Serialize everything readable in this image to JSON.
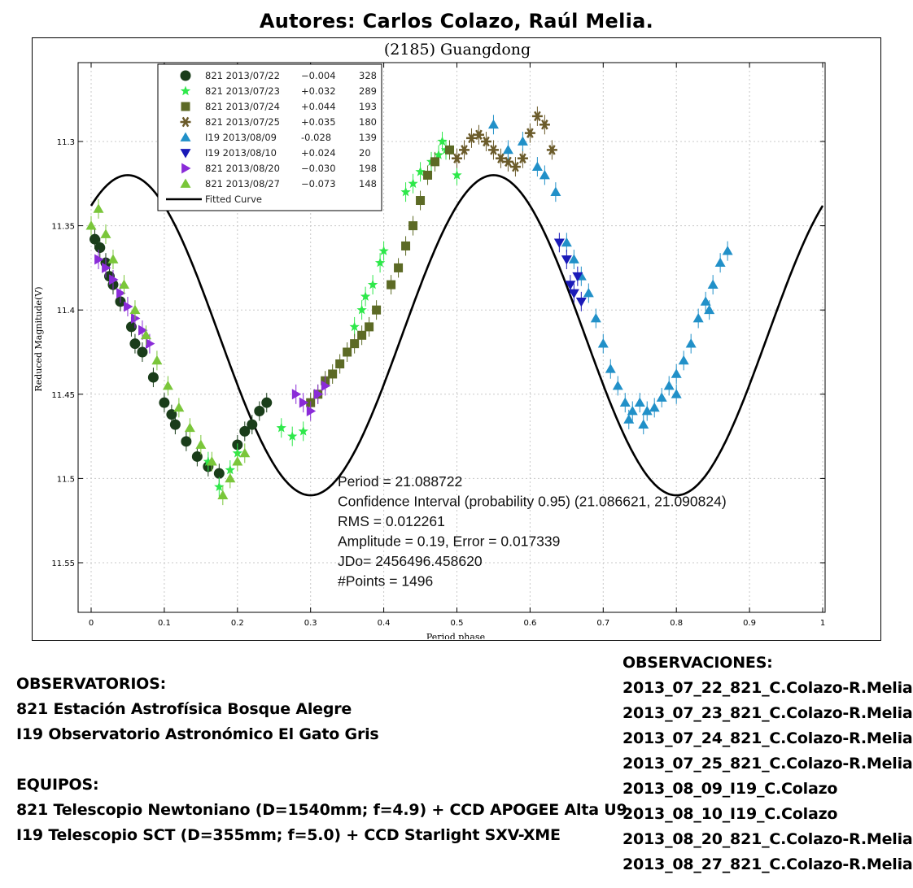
{
  "header": {
    "authors": "Autores: Carlos Colazo, Raúl Melia."
  },
  "chart_data": {
    "type": "scatter",
    "title": "(2185) Guangdong",
    "xlabel": "Period phase",
    "ylabel": "Reduced Magnitude(V)",
    "xlim": [
      0,
      1
    ],
    "ylim": [
      11.55,
      11.275
    ],
    "x_ticks": [
      "0",
      "0.1",
      "0.2",
      "0.3",
      "0.4",
      "0.5",
      "0.6",
      "0.7",
      "0.8",
      "0.9",
      "1"
    ],
    "y_ticks": [
      "11.3",
      "11.35",
      "11.4",
      "11.45",
      "11.5",
      "11.55"
    ],
    "y_tick_values": [
      11.3,
      11.35,
      11.4,
      11.45,
      11.5,
      11.55
    ],
    "grid": true,
    "legend_position": "top-left",
    "series": [
      {
        "name": "821 2013/07/22",
        "offset": "−0.004",
        "count": "328",
        "color": "#1a3d1a",
        "marker": "circle",
        "points": [
          [
            0.005,
            11.358
          ],
          [
            0.012,
            11.363
          ],
          [
            0.02,
            11.372
          ],
          [
            0.03,
            11.385
          ],
          [
            0.04,
            11.395
          ],
          [
            0.055,
            11.41
          ],
          [
            0.07,
            11.425
          ],
          [
            0.085,
            11.44
          ],
          [
            0.1,
            11.455
          ],
          [
            0.115,
            11.468
          ],
          [
            0.13,
            11.478
          ],
          [
            0.145,
            11.487
          ],
          [
            0.16,
            11.493
          ],
          [
            0.175,
            11.497
          ],
          [
            0.2,
            11.48
          ],
          [
            0.21,
            11.472
          ],
          [
            0.22,
            11.468
          ],
          [
            0.23,
            11.46
          ],
          [
            0.24,
            11.455
          ],
          [
            0.025,
            11.38
          ],
          [
            0.06,
            11.42
          ],
          [
            0.11,
            11.462
          ]
        ]
      },
      {
        "name": "821 2013/07/23",
        "offset": "+0.032",
        "count": "289",
        "color": "#2ee84a",
        "marker": "star",
        "points": [
          [
            0.16,
            11.49
          ],
          [
            0.175,
            11.505
          ],
          [
            0.19,
            11.495
          ],
          [
            0.2,
            11.485
          ],
          [
            0.26,
            11.47
          ],
          [
            0.275,
            11.475
          ],
          [
            0.29,
            11.472
          ],
          [
            0.36,
            11.41
          ],
          [
            0.37,
            11.4
          ],
          [
            0.375,
            11.392
          ],
          [
            0.385,
            11.385
          ],
          [
            0.395,
            11.372
          ],
          [
            0.4,
            11.365
          ],
          [
            0.43,
            11.33
          ],
          [
            0.44,
            11.325
          ],
          [
            0.45,
            11.318
          ],
          [
            0.465,
            11.312
          ],
          [
            0.475,
            11.308
          ],
          [
            0.48,
            11.3
          ],
          [
            0.485,
            11.305
          ],
          [
            0.5,
            11.32
          ]
        ]
      },
      {
        "name": "821 2013/07/24",
        "offset": "+0.044",
        "count": "193",
        "color": "#5c6a25",
        "marker": "square",
        "points": [
          [
            0.3,
            11.455
          ],
          [
            0.31,
            11.45
          ],
          [
            0.32,
            11.442
          ],
          [
            0.33,
            11.438
          ],
          [
            0.34,
            11.432
          ],
          [
            0.35,
            11.425
          ],
          [
            0.36,
            11.42
          ],
          [
            0.37,
            11.415
          ],
          [
            0.38,
            11.41
          ],
          [
            0.39,
            11.4
          ],
          [
            0.41,
            11.385
          ],
          [
            0.42,
            11.375
          ],
          [
            0.43,
            11.362
          ],
          [
            0.44,
            11.35
          ],
          [
            0.45,
            11.335
          ],
          [
            0.46,
            11.32
          ],
          [
            0.47,
            11.312
          ],
          [
            0.49,
            11.305
          ]
        ]
      },
      {
        "name": "821 2013/07/25",
        "offset": "+0.035",
        "count": "180",
        "color": "#6b5b2a",
        "marker": "asterisk",
        "points": [
          [
            0.5,
            11.31
          ],
          [
            0.51,
            11.305
          ],
          [
            0.52,
            11.298
          ],
          [
            0.53,
            11.296
          ],
          [
            0.54,
            11.3
          ],
          [
            0.55,
            11.305
          ],
          [
            0.56,
            11.31
          ],
          [
            0.57,
            11.312
          ],
          [
            0.58,
            11.315
          ],
          [
            0.59,
            11.31
          ],
          [
            0.6,
            11.295
          ],
          [
            0.61,
            11.285
          ],
          [
            0.62,
            11.29
          ],
          [
            0.63,
            11.305
          ]
        ]
      },
      {
        "name": "I19 2013/08/09",
        "offset": "-0.028",
        "count": "139",
        "color": "#2190c8",
        "marker": "triangle-up",
        "points": [
          [
            0.55,
            11.29
          ],
          [
            0.57,
            11.305
          ],
          [
            0.59,
            11.3
          ],
          [
            0.61,
            11.315
          ],
          [
            0.62,
            11.32
          ],
          [
            0.635,
            11.33
          ],
          [
            0.65,
            11.36
          ],
          [
            0.66,
            11.37
          ],
          [
            0.67,
            11.38
          ],
          [
            0.68,
            11.39
          ],
          [
            0.69,
            11.405
          ],
          [
            0.7,
            11.42
          ],
          [
            0.71,
            11.435
          ],
          [
            0.72,
            11.445
          ],
          [
            0.73,
            11.455
          ],
          [
            0.74,
            11.46
          ],
          [
            0.75,
            11.455
          ],
          [
            0.76,
            11.46
          ],
          [
            0.77,
            11.458
          ],
          [
            0.78,
            11.452
          ],
          [
            0.79,
            11.445
          ],
          [
            0.8,
            11.438
          ],
          [
            0.81,
            11.43
          ],
          [
            0.82,
            11.42
          ],
          [
            0.83,
            11.405
          ],
          [
            0.84,
            11.395
          ],
          [
            0.85,
            11.385
          ],
          [
            0.86,
            11.372
          ],
          [
            0.87,
            11.365
          ],
          [
            0.735,
            11.465
          ],
          [
            0.755,
            11.468
          ],
          [
            0.8,
            11.45
          ],
          [
            0.845,
            11.4
          ]
        ]
      },
      {
        "name": "I19 2013/08/10",
        "offset": "+0.024",
        "count": "20",
        "color": "#1a1ab8",
        "marker": "triangle-down",
        "points": [
          [
            0.64,
            11.36
          ],
          [
            0.65,
            11.37
          ],
          [
            0.655,
            11.385
          ],
          [
            0.66,
            11.39
          ],
          [
            0.665,
            11.38
          ],
          [
            0.67,
            11.395
          ]
        ]
      },
      {
        "name": "821 2013/08/20",
        "offset": "−0.030",
        "count": "198",
        "color": "#8a2bd8",
        "marker": "triangle-right",
        "points": [
          [
            0.01,
            11.37
          ],
          [
            0.02,
            11.375
          ],
          [
            0.03,
            11.382
          ],
          [
            0.04,
            11.39
          ],
          [
            0.05,
            11.398
          ],
          [
            0.06,
            11.405
          ],
          [
            0.07,
            11.412
          ],
          [
            0.08,
            11.42
          ],
          [
            0.28,
            11.45
          ],
          [
            0.29,
            11.455
          ],
          [
            0.3,
            11.46
          ],
          [
            0.31,
            11.45
          ],
          [
            0.32,
            11.445
          ]
        ]
      },
      {
        "name": "821 2013/08/27",
        "offset": "−0.073",
        "count": "148",
        "color": "#7ac63a",
        "marker": "triangle-up",
        "points": [
          [
            0.0,
            11.35
          ],
          [
            0.01,
            11.34
          ],
          [
            0.02,
            11.355
          ],
          [
            0.03,
            11.37
          ],
          [
            0.045,
            11.385
          ],
          [
            0.06,
            11.4
          ],
          [
            0.075,
            11.415
          ],
          [
            0.09,
            11.43
          ],
          [
            0.105,
            11.445
          ],
          [
            0.12,
            11.458
          ],
          [
            0.135,
            11.47
          ],
          [
            0.15,
            11.48
          ],
          [
            0.165,
            11.49
          ],
          [
            0.18,
            11.51
          ],
          [
            0.19,
            11.5
          ],
          [
            0.2,
            11.49
          ],
          [
            0.21,
            11.485
          ]
        ]
      }
    ],
    "fit_label": "Fitted Curve",
    "fit": {
      "mean": 11.415,
      "amplitude": 0.095,
      "period_phase": 0.5,
      "phase_of_max": 0.55
    },
    "annotations": [
      "Period =  21.088722",
      "Confidence Interval (probability 0.95) (21.086621, 21.090824)",
      "RMS = 0.012261",
      "Amplitude = 0.19, Error =   0.017339",
      "JDo= 2456496.458620",
      " #Points =   1496"
    ]
  },
  "observatorios": {
    "title": "OBSERVATORIOS:",
    "items": [
      "821 Estación Astrofísica Bosque Alegre",
      "I19 Observatorio Astronómico El Gato Gris"
    ]
  },
  "equipos": {
    "title": "EQUIPOS:",
    "items": [
      "821 Telescopio Newtoniano (D=1540mm; f=4.9) + CCD APOGEE Alta U9",
      "I19 Telescopio SCT (D=355mm; f=5.0) + CCD Starlight SXV-XME"
    ]
  },
  "observaciones": {
    "title": "OBSERVACIONES:",
    "items": [
      "2013_07_22_821_C.Colazo-R.Melia",
      "2013_07_23_821_C.Colazo-R.Melia",
      "2013_07_24_821_C.Colazo-R.Melia",
      "2013_07_25_821_C.Colazo-R.Melia",
      "2013_08_09_I19_C.Colazo",
      "2013_08_10_I19_C.Colazo",
      "2013_08_20_821_C.Colazo-R.Melia",
      "2013_08_27_821_C.Colazo-R.Melia"
    ]
  }
}
